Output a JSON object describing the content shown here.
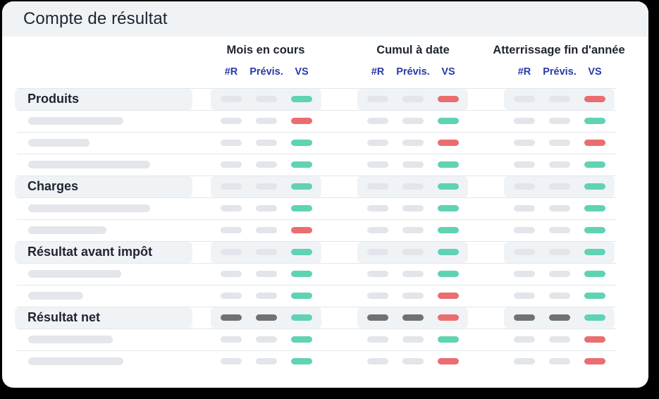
{
  "card": {
    "title": "Compte de résultat"
  },
  "columns": {
    "groups": [
      {
        "label": "Mois en cours",
        "sub": [
          "#R",
          "Prévis.",
          "VS"
        ]
      },
      {
        "label": "Cumul à date",
        "sub": [
          "#R",
          "Prévis.",
          "VS"
        ]
      },
      {
        "label": "Atterrissage fin d'année",
        "sub": [
          "#R",
          "Prévis.",
          "VS"
        ]
      }
    ]
  },
  "colors": {
    "positive": "#5fd3b3",
    "negative": "#ea6d70",
    "placeholder": "#e2e5e9",
    "emphasis": "#717171",
    "accent_text": "#2a3aa8"
  },
  "rows": [
    {
      "type": "section",
      "label": "Produits",
      "vs": [
        "green",
        "red",
        "red"
      ],
      "emph": false
    },
    {
      "type": "item",
      "placeholder_width": 135,
      "vs": [
        "red",
        "green",
        "green"
      ]
    },
    {
      "type": "item",
      "placeholder_width": 87,
      "vs": [
        "green",
        "red",
        "red"
      ]
    },
    {
      "type": "item",
      "placeholder_width": 173,
      "vs": [
        "green",
        "green",
        "green"
      ]
    },
    {
      "type": "section",
      "label": "Charges",
      "vs": [
        "green",
        "green",
        "green"
      ],
      "emph": false
    },
    {
      "type": "item",
      "placeholder_width": 173,
      "vs": [
        "green",
        "green",
        "green"
      ]
    },
    {
      "type": "item",
      "placeholder_width": 111,
      "vs": [
        "red",
        "green",
        "green"
      ]
    },
    {
      "type": "section",
      "label": "Résultat avant impôt",
      "vs": [
        "green",
        "green",
        "green"
      ],
      "emph": false
    },
    {
      "type": "item",
      "placeholder_width": 132,
      "vs": [
        "green",
        "green",
        "green"
      ]
    },
    {
      "type": "item",
      "placeholder_width": 78,
      "vs": [
        "green",
        "red",
        "green"
      ]
    },
    {
      "type": "section",
      "label": "Résultat net",
      "vs": [
        "green",
        "red",
        "green"
      ],
      "emph": true
    },
    {
      "type": "item",
      "placeholder_width": 120,
      "vs": [
        "green",
        "green",
        "red"
      ]
    },
    {
      "type": "item",
      "placeholder_width": 135,
      "vs": [
        "green",
        "red",
        "red"
      ]
    }
  ]
}
